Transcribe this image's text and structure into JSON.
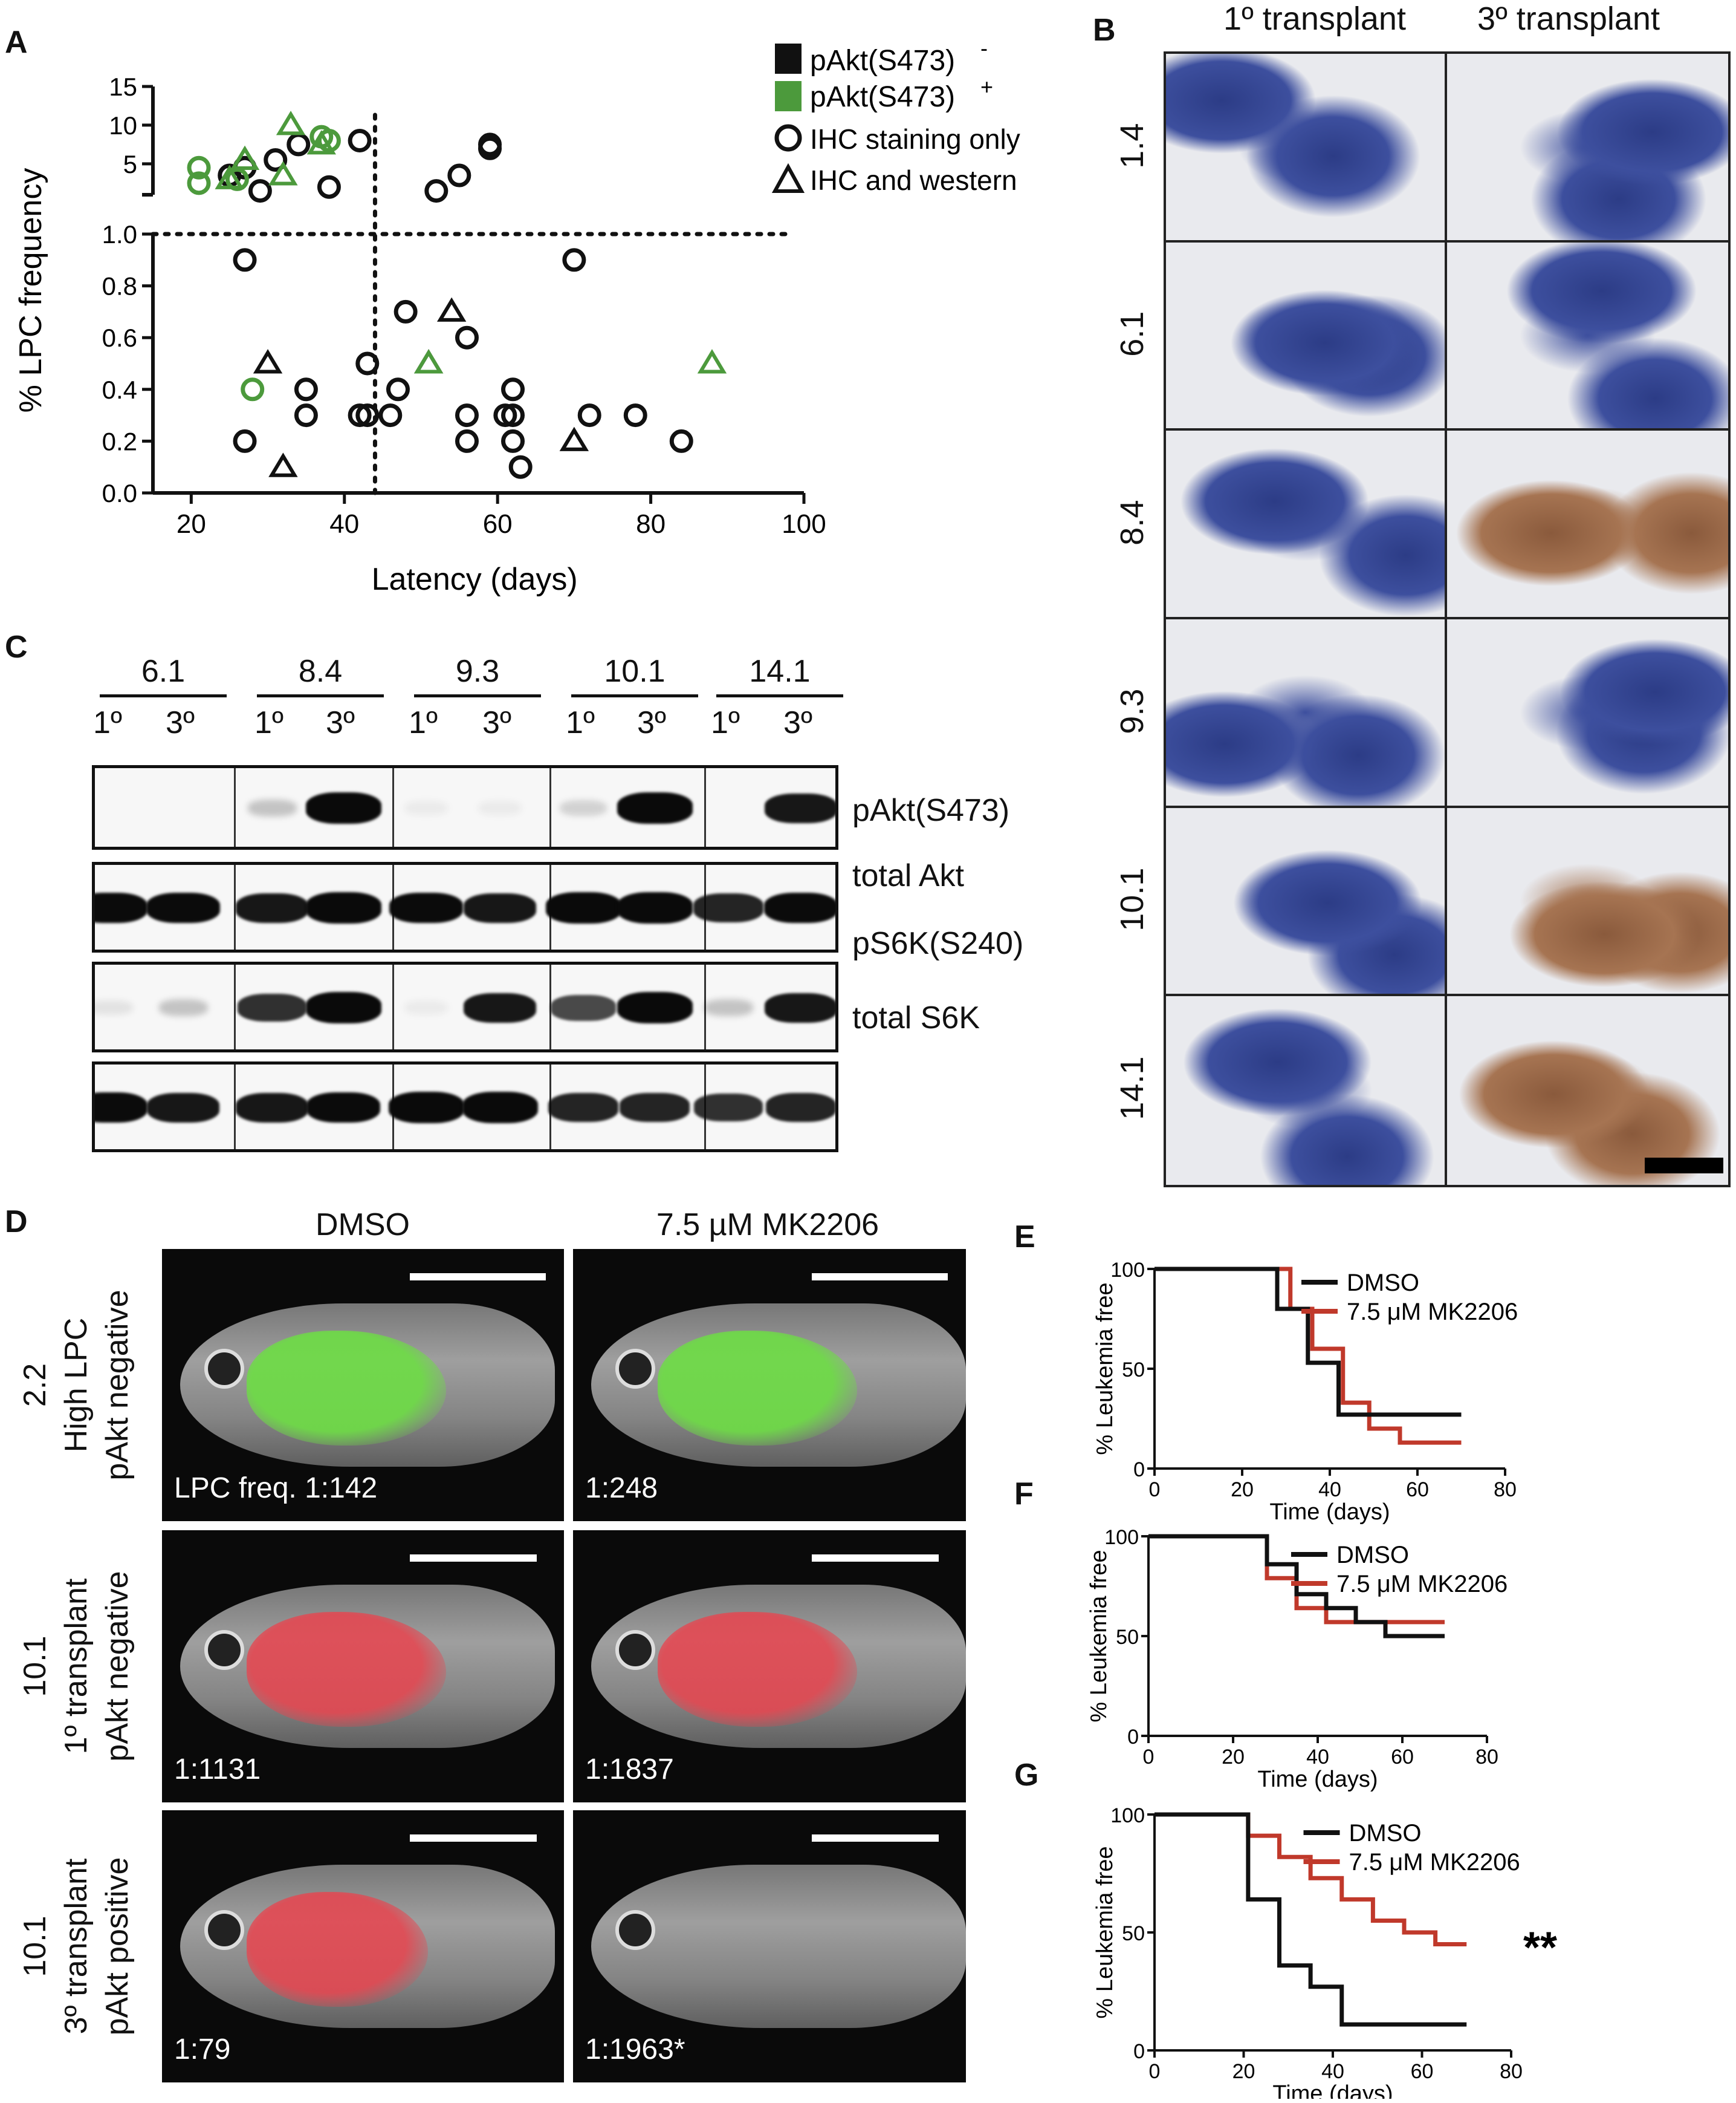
{
  "panels": {
    "A": {
      "label": "A",
      "xlabel": "Latency (days)",
      "ylabel": "% LPC frequency",
      "x_ticks": [
        "20",
        "40",
        "60",
        "80",
        "100"
      ],
      "y_ticks_lower": [
        "0.0",
        "0.2",
        "0.4",
        "0.6",
        "0.8",
        "1.0"
      ],
      "y_ticks_upper": [
        "5",
        "10",
        "15"
      ],
      "legend": {
        "neg": "pAkt(S473)",
        "neg_sup": "-",
        "pos": "pAkt(S473)",
        "pos_sup": "+",
        "circle": "IHC staining only",
        "triangle": "IHC and western"
      }
    },
    "B": {
      "label": "B",
      "col1": "1º transplant",
      "col2": "3º transplant",
      "rows": [
        "1.4",
        "6.1",
        "8.4",
        "9.3",
        "10.1",
        "14.1"
      ]
    },
    "C": {
      "label": "C",
      "samples": [
        "6.1",
        "8.4",
        "9.3",
        "10.1",
        "14.1"
      ],
      "lane1": "1º",
      "lane2": "3º",
      "blots": [
        "pAkt(S473)",
        "total Akt",
        "pS6K(S240)",
        "total S6K"
      ]
    },
    "D": {
      "label": "D",
      "col1": "DMSO",
      "col2": "7.5 µM MK2206",
      "rows": [
        {
          "line1": "2.2",
          "line2": "High LPC",
          "line3": "pAkt negative",
          "left": "LPC freq. 1:142",
          "right": "1:248"
        },
        {
          "line1": "10.1",
          "line2": "1º transplant",
          "line3": "pAkt negative",
          "left": "1:1131",
          "right": "1:1837"
        },
        {
          "line1": "10.1",
          "line2": "3º transplant",
          "line3": "pAkt positive",
          "left": "1:79",
          "right": "1:1963*"
        }
      ]
    },
    "E": {
      "label": "E",
      "legend1": "DMSO",
      "legend2": "7.5 μM MK2206",
      "ylabel": "% Leukemia free",
      "xlabel": "Time (days)"
    },
    "F": {
      "label": "F",
      "legend1": "DMSO",
      "legend2": "7.5 μM MK2206",
      "ylabel": "% Leukemia free",
      "xlabel": "Time (days)"
    },
    "G": {
      "label": "G",
      "legend1": "DMSO",
      "legend2": "7.5 μM MK2206",
      "ylabel": "% Leukemia free",
      "xlabel": "Time (days)",
      "sig": "**"
    }
  },
  "colors": {
    "green": "#4c9a3c",
    "red": "#c0392b",
    "black": "#111111"
  },
  "chart_data": [
    {
      "type": "scatter",
      "panel": "A",
      "xlabel": "Latency (days)",
      "ylabel": "% LPC frequency",
      "xlim": [
        15,
        100
      ],
      "ylim_lower": [
        0,
        1.0
      ],
      "ylim_upper": [
        1,
        15
      ],
      "reference_lines": {
        "x": 44,
        "y": 1.0
      },
      "series": [
        {
          "name": "pAkt(S473)- IHC staining only",
          "marker": "circle",
          "color": "black",
          "points": [
            [
              25,
              3.5
            ],
            [
              27,
              4.5
            ],
            [
              29,
              1.5
            ],
            [
              31,
              5.5
            ],
            [
              34,
              7.5
            ],
            [
              38,
              2
            ],
            [
              42,
              8
            ],
            [
              52,
              1.5
            ],
            [
              55,
              3.5
            ],
            [
              59,
              7.5
            ],
            [
              59,
              7
            ],
            [
              27,
              0.9
            ],
            [
              70,
              0.9
            ],
            [
              48,
              0.7
            ],
            [
              56,
              0.6
            ],
            [
              27,
              0.2
            ],
            [
              35,
              0.4
            ],
            [
              35,
              0.3
            ],
            [
              43,
              0.5
            ],
            [
              43,
              0.3
            ],
            [
              42,
              0.3
            ],
            [
              46,
              0.3
            ],
            [
              47,
              0.4
            ],
            [
              56,
              0.3
            ],
            [
              56,
              0.2
            ],
            [
              61,
              0.3
            ],
            [
              62,
              0.4
            ],
            [
              62,
              0.3
            ],
            [
              63,
              0.1
            ],
            [
              62,
              0.2
            ],
            [
              72,
              0.3
            ],
            [
              78,
              0.3
            ],
            [
              84,
              0.2
            ]
          ]
        },
        {
          "name": "pAkt(S473)- IHC and western",
          "marker": "triangle",
          "color": "black",
          "points": [
            [
              30,
              0.5
            ],
            [
              32,
              0.1
            ],
            [
              51,
              0.5
            ],
            [
              54,
              0.7
            ],
            [
              70,
              0.2
            ]
          ]
        },
        {
          "name": "pAkt(S473)+ IHC staining only",
          "marker": "circle",
          "color": "green",
          "points": [
            [
              21,
              4.5
            ],
            [
              21,
              2.5
            ],
            [
              26,
              3
            ],
            [
              37,
              8.5
            ],
            [
              38,
              8
            ],
            [
              28,
              0.4
            ]
          ]
        },
        {
          "name": "pAkt(S473)+ IHC and western",
          "marker": "triangle",
          "color": "green",
          "points": [
            [
              25,
              3
            ],
            [
              27,
              5.5
            ],
            [
              32,
              3.5
            ],
            [
              33,
              10
            ],
            [
              37,
              7.5
            ],
            [
              51,
              0.5
            ],
            [
              88,
              0.5
            ]
          ]
        }
      ]
    },
    {
      "type": "line",
      "panel": "E",
      "step": true,
      "xlabel": "Time (days)",
      "ylabel": "% Leukemia free",
      "xlim": [
        0,
        80
      ],
      "ylim": [
        0,
        100
      ],
      "x_ticks": [
        0,
        20,
        40,
        60,
        80
      ],
      "y_ticks": [
        0,
        50,
        100
      ],
      "series": [
        {
          "name": "DMSO",
          "color": "black",
          "x": [
            0,
            28,
            28,
            35,
            35,
            42,
            42,
            70
          ],
          "y": [
            100,
            100,
            80,
            80,
            53,
            53,
            27,
            27
          ]
        },
        {
          "name": "7.5 μM MK2206",
          "color": "red",
          "x": [
            0,
            31,
            31,
            36,
            36,
            43,
            43,
            49,
            49,
            56,
            56,
            70
          ],
          "y": [
            100,
            100,
            80,
            80,
            60,
            60,
            33,
            33,
            20,
            20,
            13,
            13
          ]
        }
      ]
    },
    {
      "type": "line",
      "panel": "F",
      "step": true,
      "xlabel": "Time (days)",
      "ylabel": "% Leukemia free",
      "xlim": [
        0,
        80
      ],
      "ylim": [
        0,
        100
      ],
      "x_ticks": [
        0,
        20,
        40,
        60,
        80
      ],
      "y_ticks": [
        0,
        50,
        100
      ],
      "series": [
        {
          "name": "DMSO",
          "color": "black",
          "x": [
            0,
            28,
            28,
            35,
            35,
            42,
            42,
            49,
            49,
            56,
            56,
            70
          ],
          "y": [
            100,
            100,
            86,
            86,
            71,
            71,
            64,
            64,
            57,
            57,
            50,
            50
          ]
        },
        {
          "name": "7.5 μM MK2206",
          "color": "red",
          "x": [
            0,
            28,
            28,
            35,
            35,
            42,
            42,
            56,
            56,
            70
          ],
          "y": [
            100,
            100,
            79,
            79,
            64,
            64,
            57,
            57,
            57,
            57
          ]
        }
      ]
    },
    {
      "type": "line",
      "panel": "G",
      "step": true,
      "xlabel": "Time (days)",
      "ylabel": "% Leukemia free",
      "xlim": [
        0,
        80
      ],
      "ylim": [
        0,
        100
      ],
      "x_ticks": [
        0,
        20,
        40,
        60,
        80
      ],
      "y_ticks": [
        0,
        50,
        100
      ],
      "series": [
        {
          "name": "DMSO",
          "color": "black",
          "x": [
            0,
            21,
            21,
            28,
            28,
            35,
            35,
            42,
            42,
            70
          ],
          "y": [
            100,
            100,
            64,
            64,
            36,
            36,
            27,
            27,
            11,
            11
          ]
        },
        {
          "name": "7.5 μM MK2206",
          "color": "red",
          "x": [
            0,
            21,
            21,
            28,
            28,
            35,
            35,
            42,
            42,
            49,
            49,
            56,
            56,
            63,
            63,
            70
          ],
          "y": [
            100,
            100,
            91,
            91,
            82,
            82,
            73,
            73,
            64,
            64,
            55,
            55,
            50,
            50,
            45,
            45
          ]
        }
      ]
    }
  ]
}
